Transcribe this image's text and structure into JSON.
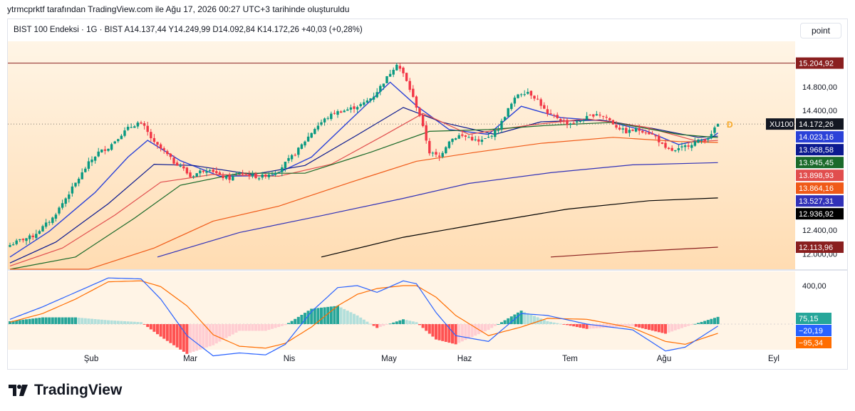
{
  "header": {
    "text": "ytrmcprktf tarafından TradingView.com ile Ağu 17, 2026 00:27 UTC+3 tarihinde oluşturuldu"
  },
  "legend": {
    "text": "BIST 100 Endeksi · 1G · BIST   A14.137,44   Y14.249,99   D14.092,84   K14.172,26   +40,03 (+0,28%)"
  },
  "scale_button": {
    "label": "point"
  },
  "brand": {
    "name": "TradingView"
  },
  "colors": {
    "bg_top": "#fff4e3",
    "bg_bottom": "#ffdcb0",
    "up": "#089981",
    "down": "#f23645"
  },
  "chart_data": [
    {
      "type": "candlestick",
      "symbol": "XU100",
      "x_labels": [
        "Şub",
        "Mar",
        "Nis",
        "May",
        "Haz",
        "Tem",
        "Ağu",
        "Eyl"
      ],
      "y_tick_labels": [
        "14.800,00",
        "14.400,00",
        "12.400,00",
        "12.000,00"
      ],
      "resistance_line": 15204.92,
      "last_marker": "D",
      "close_path": [
        [
          0,
          12150
        ],
        [
          3,
          12230
        ],
        [
          7,
          12300
        ],
        [
          10,
          12450
        ],
        [
          13,
          12600
        ],
        [
          16,
          12850
        ],
        [
          19,
          13100
        ],
        [
          22,
          13350
        ],
        [
          24,
          13520
        ],
        [
          27,
          13700
        ],
        [
          30,
          13780
        ],
        [
          33,
          13950
        ],
        [
          36,
          14100
        ],
        [
          39,
          14190
        ],
        [
          41,
          14120
        ],
        [
          44,
          13850
        ],
        [
          47,
          13720
        ],
        [
          50,
          13530
        ],
        [
          52,
          13480
        ],
        [
          55,
          13290
        ],
        [
          58,
          13380
        ],
        [
          61,
          13430
        ],
        [
          64,
          13300
        ],
        [
          67,
          13260
        ],
        [
          70,
          13350
        ],
        [
          73,
          13320
        ],
        [
          76,
          13280
        ],
        [
          79,
          13340
        ],
        [
          82,
          13400
        ],
        [
          84,
          13520
        ],
        [
          87,
          13680
        ],
        [
          90,
          13890
        ],
        [
          93,
          14100
        ],
        [
          96,
          14250
        ],
        [
          99,
          14360
        ],
        [
          102,
          14400
        ],
        [
          105,
          14450
        ],
        [
          108,
          14520
        ],
        [
          111,
          14650
        ],
        [
          114,
          14880
        ],
        [
          117,
          15120
        ],
        [
          118,
          15200
        ],
        [
          120,
          15020
        ],
        [
          122,
          14760
        ],
        [
          125,
          14320
        ],
        [
          128,
          13700
        ],
        [
          131,
          13620
        ],
        [
          134,
          13900
        ],
        [
          137,
          13980
        ],
        [
          140,
          13950
        ],
        [
          143,
          13870
        ],
        [
          146,
          13950
        ],
        [
          149,
          14100
        ],
        [
          152,
          14420
        ],
        [
          155,
          14680
        ],
        [
          158,
          14720
        ],
        [
          161,
          14580
        ],
        [
          164,
          14330
        ],
        [
          167,
          14280
        ],
        [
          170,
          14180
        ],
        [
          173,
          14200
        ],
        [
          176,
          14280
        ],
        [
          179,
          14350
        ],
        [
          182,
          14280
        ],
        [
          185,
          14130
        ],
        [
          188,
          14040
        ],
        [
          191,
          14080
        ],
        [
          194,
          14050
        ],
        [
          197,
          13960
        ],
        [
          200,
          13750
        ],
        [
          203,
          13720
        ],
        [
          206,
          13800
        ],
        [
          209,
          13870
        ],
        [
          212,
          13920
        ],
        [
          214,
          13980
        ],
        [
          215,
          14110
        ],
        [
          216,
          14172.26
        ]
      ],
      "series": [
        {
          "name": "",
          "color": "#2b42d8",
          "last": 14023.16,
          "path": [
            [
              0,
              11950
            ],
            [
              12,
              12380
            ],
            [
              26,
              13030
            ],
            [
              36,
              13620
            ],
            [
              42,
              13900
            ],
            [
              52,
              13560
            ],
            [
              64,
              13300
            ],
            [
              80,
              13310
            ],
            [
              92,
              13620
            ],
            [
              104,
              14250
            ],
            [
              116,
              14880
            ],
            [
              124,
              14480
            ],
            [
              134,
              14080
            ],
            [
              146,
              14000
            ],
            [
              156,
              14470
            ],
            [
              168,
              14280
            ],
            [
              182,
              14220
            ],
            [
              194,
              14060
            ],
            [
              204,
              13830
            ],
            [
              214,
              13940
            ],
            [
              216,
              14023.16
            ]
          ]
        },
        {
          "name": "",
          "color": "#0c1a8f",
          "last": 13968.58,
          "path": [
            [
              0,
              11850
            ],
            [
              14,
              12200
            ],
            [
              30,
              12840
            ],
            [
              44,
              13500
            ],
            [
              56,
              13480
            ],
            [
              74,
              13330
            ],
            [
              90,
              13480
            ],
            [
              106,
              13990
            ],
            [
              120,
              14450
            ],
            [
              132,
              14200
            ],
            [
              148,
              14000
            ],
            [
              162,
              14210
            ],
            [
              180,
              14240
            ],
            [
              196,
              14100
            ],
            [
              210,
              13950
            ],
            [
              216,
              13968.58
            ]
          ]
        },
        {
          "name": "",
          "color": "#e14e4e",
          "last": 13898.93,
          "path": [
            [
              0,
              11800
            ],
            [
              16,
              12100
            ],
            [
              32,
              12650
            ],
            [
              46,
              13200
            ],
            [
              62,
              13330
            ],
            [
              82,
              13300
            ],
            [
              98,
              13500
            ],
            [
              114,
              13980
            ],
            [
              126,
              14350
            ],
            [
              140,
              14000
            ],
            [
              158,
              14150
            ],
            [
              176,
              14260
            ],
            [
              194,
              14120
            ],
            [
              210,
              13880
            ],
            [
              216,
              13898.93
            ]
          ]
        },
        {
          "name": "",
          "color": "#1b6a2a",
          "last": 13945.45,
          "path": [
            [
              0,
              11600
            ],
            [
              20,
              11950
            ],
            [
              38,
              12600
            ],
            [
              52,
              13150
            ],
            [
              70,
              13350
            ],
            [
              90,
              13350
            ],
            [
              110,
              13700
            ],
            [
              128,
              14050
            ],
            [
              146,
              14080
            ],
            [
              164,
              14150
            ],
            [
              184,
              14200
            ],
            [
              204,
              14000
            ],
            [
              216,
              13945.45
            ]
          ]
        },
        {
          "name": "",
          "color": "#f05a18",
          "last": 13864.16,
          "path": [
            [
              0,
              11200
            ],
            [
              24,
              11600
            ],
            [
              44,
              12100
            ],
            [
              62,
              12550
            ],
            [
              82,
              12800
            ],
            [
              104,
              13200
            ],
            [
              124,
              13550
            ],
            [
              142,
              13700
            ],
            [
              162,
              13850
            ],
            [
              184,
              13950
            ],
            [
              204,
              13880
            ],
            [
              216,
              13864.16
            ]
          ]
        },
        {
          "name": "",
          "color": "#3232b8",
          "last": 13527.31,
          "path": [
            [
              45,
              11950
            ],
            [
              70,
              12360
            ],
            [
              95,
              12640
            ],
            [
              120,
              12930
            ],
            [
              140,
              13180
            ],
            [
              165,
              13360
            ],
            [
              190,
              13490
            ],
            [
              216,
              13527.31
            ]
          ]
        },
        {
          "name": "",
          "color": "#000000",
          "last": 12936.92,
          "path": [
            [
              95,
              11950
            ],
            [
              120,
              12280
            ],
            [
              145,
              12520
            ],
            [
              170,
              12750
            ],
            [
              195,
              12890
            ],
            [
              216,
              12936.92
            ]
          ]
        },
        {
          "name": "",
          "color": "#8a1f1f",
          "last": 12113.96,
          "path": [
            [
              165,
              11950
            ],
            [
              190,
              12040
            ],
            [
              216,
              12113.96
            ]
          ]
        }
      ]
    },
    {
      "type": "macd",
      "y_tick_labels": [
        "400,00"
      ],
      "macd": {
        "name": "",
        "color": "#2962ff",
        "last": -20.19
      },
      "signal": {
        "name": "",
        "color": "#ff6d00",
        "last": -95.34
      },
      "histogram": {
        "last": 75.15
      },
      "macd_path": [
        [
          0,
          50
        ],
        [
          10,
          180
        ],
        [
          20,
          330
        ],
        [
          30,
          480
        ],
        [
          40,
          470
        ],
        [
          46,
          260
        ],
        [
          54,
          -120
        ],
        [
          62,
          -330
        ],
        [
          70,
          -300
        ],
        [
          78,
          -320
        ],
        [
          84,
          -210
        ],
        [
          92,
          130
        ],
        [
          100,
          380
        ],
        [
          106,
          400
        ],
        [
          112,
          330
        ],
        [
          120,
          450
        ],
        [
          124,
          420
        ],
        [
          130,
          120
        ],
        [
          136,
          -120
        ],
        [
          146,
          -180
        ],
        [
          156,
          110
        ],
        [
          164,
          90
        ],
        [
          176,
          0
        ],
        [
          190,
          -60
        ],
        [
          200,
          -280
        ],
        [
          206,
          -240
        ],
        [
          216,
          -20.19
        ]
      ],
      "signal_path": [
        [
          0,
          20
        ],
        [
          10,
          110
        ],
        [
          20,
          260
        ],
        [
          30,
          440
        ],
        [
          40,
          450
        ],
        [
          46,
          390
        ],
        [
          54,
          190
        ],
        [
          62,
          -110
        ],
        [
          70,
          -230
        ],
        [
          78,
          -250
        ],
        [
          84,
          -200
        ],
        [
          92,
          -30
        ],
        [
          100,
          190
        ],
        [
          106,
          310
        ],
        [
          112,
          370
        ],
        [
          120,
          400
        ],
        [
          124,
          400
        ],
        [
          130,
          280
        ],
        [
          136,
          90
        ],
        [
          146,
          -120
        ],
        [
          156,
          -30
        ],
        [
          164,
          60
        ],
        [
          176,
          50
        ],
        [
          190,
          -40
        ],
        [
          200,
          -180
        ],
        [
          206,
          -210
        ],
        [
          216,
          -95.34
        ]
      ]
    }
  ]
}
